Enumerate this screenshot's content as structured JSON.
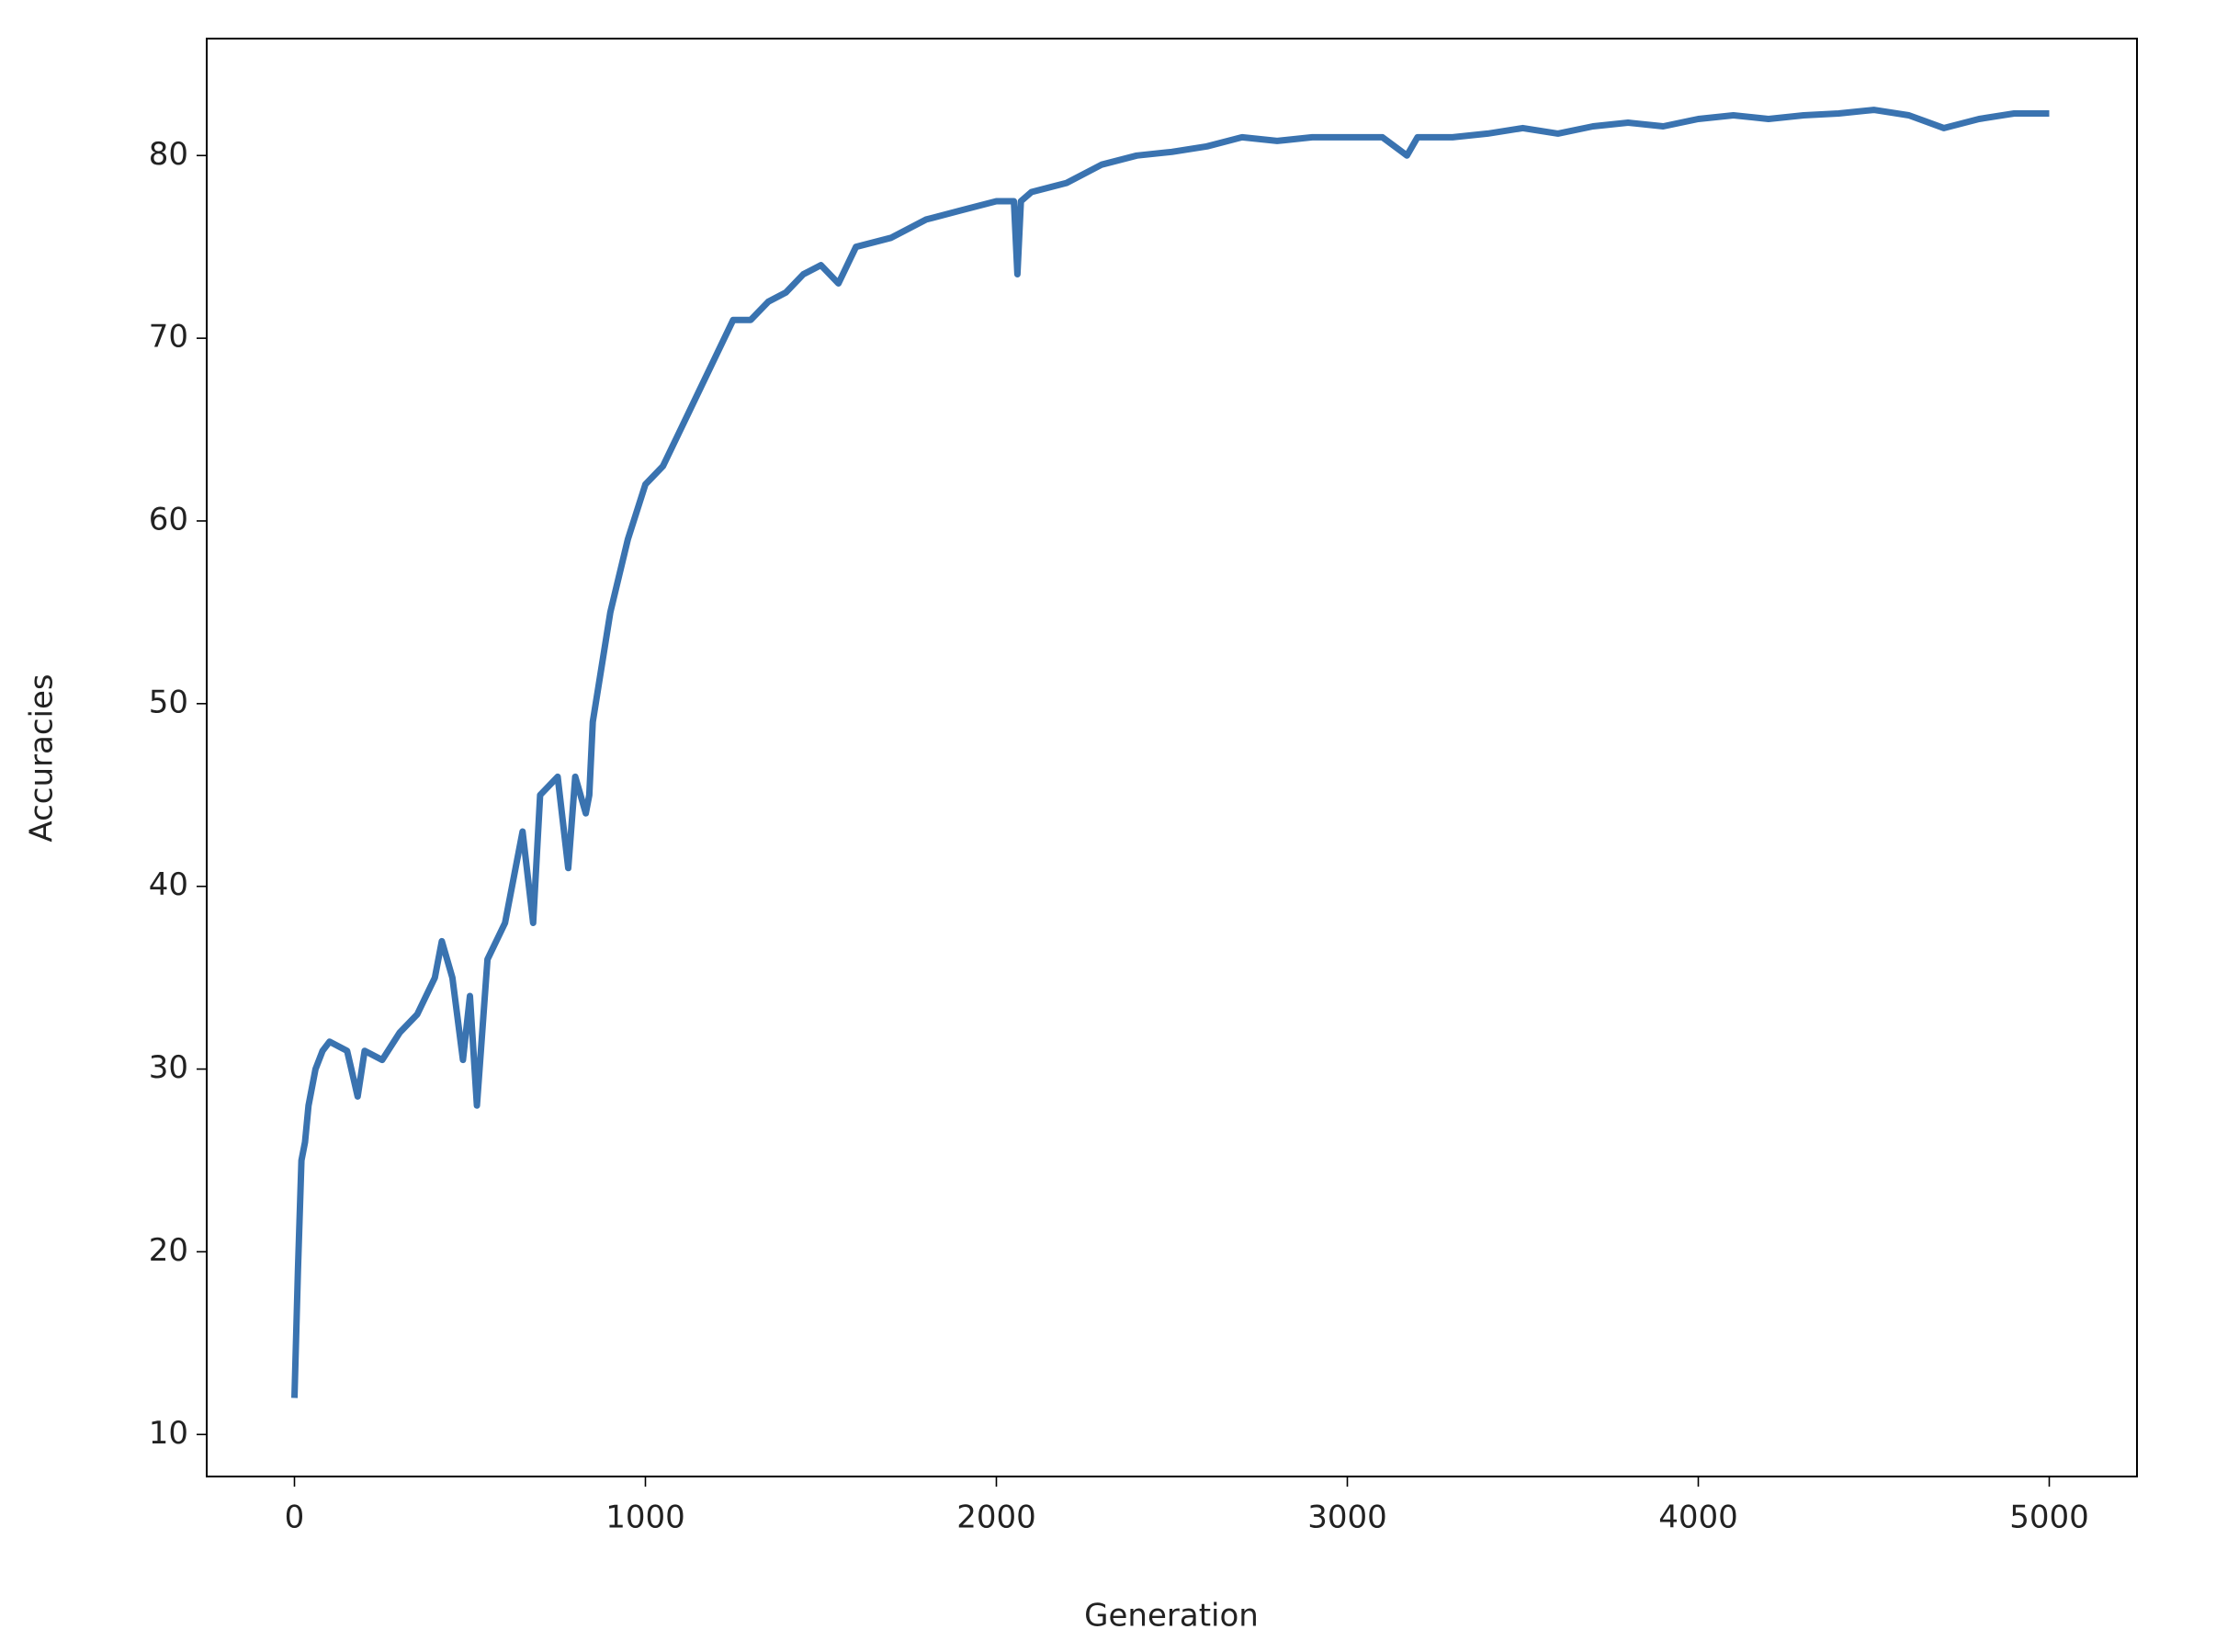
{
  "chart_data": {
    "type": "line",
    "xlabel": "Generation",
    "ylabel": "Accuracies",
    "x": [
      0,
      10,
      20,
      30,
      40,
      60,
      80,
      100,
      150,
      180,
      200,
      250,
      300,
      350,
      400,
      420,
      450,
      480,
      500,
      520,
      550,
      600,
      650,
      680,
      700,
      750,
      780,
      800,
      830,
      840,
      850,
      900,
      950,
      1000,
      1050,
      1100,
      1150,
      1200,
      1250,
      1300,
      1350,
      1400,
      1450,
      1500,
      1550,
      1600,
      1700,
      1800,
      1900,
      2000,
      2050,
      2060,
      2070,
      2100,
      2200,
      2300,
      2400,
      2500,
      2600,
      2700,
      2800,
      2900,
      3000,
      3100,
      3170,
      3200,
      3300,
      3400,
      3500,
      3600,
      3700,
      3800,
      3900,
      4000,
      4100,
      4200,
      4300,
      4400,
      4500,
      4600,
      4700,
      4800,
      4900,
      5000
    ],
    "values": [
      12,
      19,
      25,
      26,
      28,
      30,
      31,
      31.5,
      31,
      28.5,
      31,
      30.5,
      32,
      33,
      35,
      37,
      35,
      30.5,
      34,
      28,
      36,
      38,
      43,
      38,
      45,
      46,
      41,
      46,
      44,
      45,
      49,
      55,
      59,
      62,
      63,
      65,
      67,
      69,
      71,
      71,
      72,
      72.5,
      73.5,
      74,
      73,
      75,
      75.5,
      76.5,
      77,
      77.5,
      77.5,
      73.5,
      77.5,
      78,
      78.5,
      79.5,
      80,
      80.2,
      80.5,
      81,
      80.8,
      81,
      81,
      81,
      80,
      81,
      81,
      81.2,
      81.5,
      81.2,
      81.6,
      81.8,
      81.6,
      82,
      82.2,
      82,
      82.2,
      82.3,
      82.5,
      82.2,
      81.5,
      82,
      82.3,
      82.3
    ],
    "color": "#3a73b0",
    "xlim": [
      -250,
      5250
    ],
    "xticks": [
      0,
      1000,
      2000,
      3000,
      4000,
      5000
    ],
    "ylim": [
      7.7,
      86.4
    ],
    "yticks": [
      10,
      20,
      30,
      40,
      50,
      60,
      70,
      80
    ],
    "grid": false
  }
}
